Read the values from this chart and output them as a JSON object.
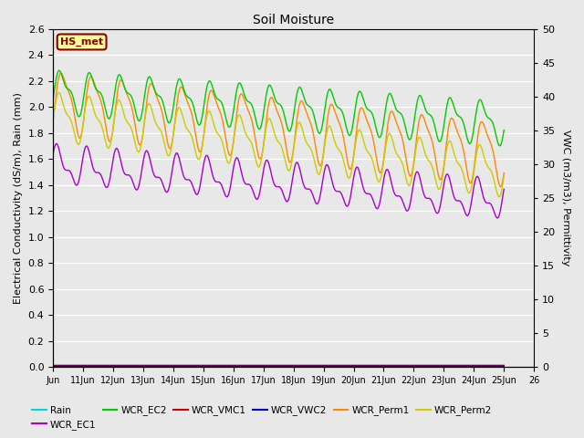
{
  "title": "Soil Moisture",
  "ylabel_left": "Electrical Conductivity (dS/m), Rain (mm)",
  "ylabel_right": "VWC (m3/m3), Permittivity",
  "xlim": [
    0,
    15
  ],
  "ylim_left": [
    0,
    2.6
  ],
  "ylim_right": [
    0,
    50
  ],
  "x_tick_labels": [
    "Jun",
    "11Jun",
    "12Jun",
    "13Jun",
    "14Jun",
    "15Jun",
    "16Jun",
    "17Jun",
    "18Jun",
    "19Jun",
    "20Jun",
    "21Jun",
    "22Jun",
    "23Jun",
    "24Jun",
    "25Jun",
    "26"
  ],
  "station_label": "HS_met",
  "fig_facecolor": "#e8e8e8",
  "plot_facecolor": "#e8e8e8",
  "colors": {
    "Rain": "#00d8d8",
    "WCR_EC1": "#aa00cc",
    "WCR_EC2": "#00cc00",
    "WCR_VMC1": "#cc0000",
    "WCR_VWC2": "#0000cc",
    "WCR_Perm1": "#ff8800",
    "WCR_Perm2": "#cccc00"
  }
}
